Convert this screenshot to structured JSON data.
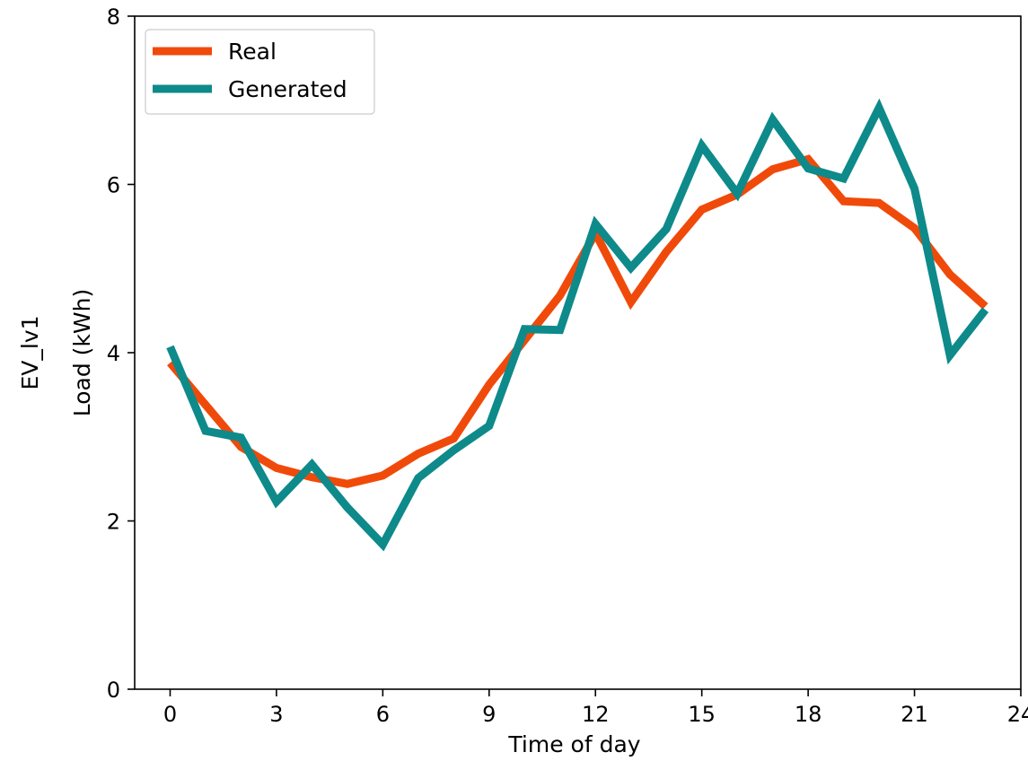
{
  "chart_data": {
    "type": "line",
    "x": [
      0,
      1,
      2,
      3,
      4,
      5,
      6,
      7,
      8,
      9,
      10,
      11,
      12,
      13,
      14,
      15,
      16,
      17,
      18,
      19,
      20,
      21,
      22,
      23
    ],
    "series": [
      {
        "name": "Real",
        "color": "#f04a0a",
        "values": [
          3.88,
          3.38,
          2.88,
          2.63,
          2.52,
          2.44,
          2.54,
          2.8,
          2.98,
          3.62,
          4.15,
          4.68,
          5.42,
          4.6,
          5.2,
          5.7,
          5.88,
          6.18,
          6.3,
          5.8,
          5.78,
          5.48,
          4.93,
          4.55
        ]
      },
      {
        "name": "Generated",
        "color": "#0e8a8a",
        "values": [
          4.07,
          3.07,
          2.99,
          2.23,
          2.67,
          2.16,
          1.72,
          2.51,
          2.84,
          3.13,
          4.28,
          4.27,
          5.53,
          5.01,
          5.47,
          6.46,
          5.89,
          6.77,
          6.19,
          6.07,
          6.91,
          5.95,
          3.97,
          4.51
        ]
      }
    ],
    "xlabel": "Time of day",
    "ylabel": "Load (kWh)",
    "ylabel_outer": "EV_lv1",
    "xlim": [
      -1,
      24
    ],
    "ylim": [
      0,
      8
    ],
    "xticks": [
      0,
      3,
      6,
      9,
      12,
      15,
      18,
      21,
      24
    ],
    "yticks": [
      0,
      2,
      4,
      6,
      8
    ],
    "grid": false,
    "legend_position": "top-left"
  }
}
